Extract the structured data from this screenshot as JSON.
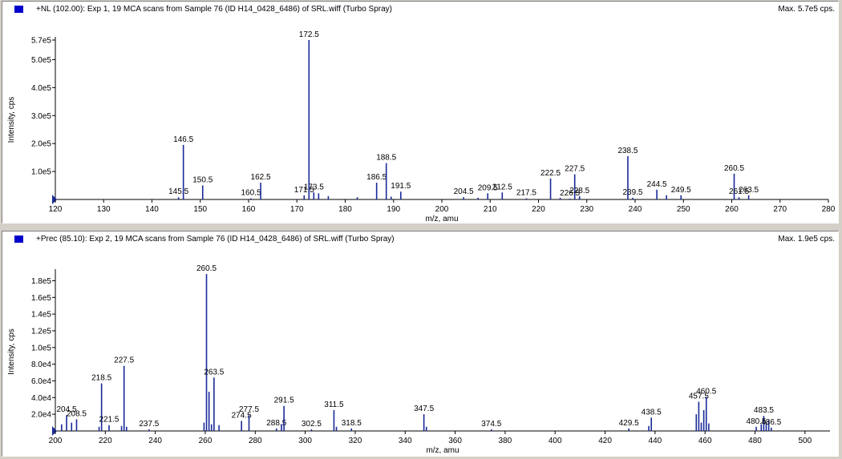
{
  "chart_data": [
    {
      "type": "bar",
      "title": "+NL (102.00): Exp 1, 19 MCA scans from Sample 76 (ID H14_0428_6486) of SRL.wiff (Turbo Spray)",
      "max_label": "Max. 5.7e5 cps.",
      "xlabel": "m/z, amu",
      "ylabel": "Intensity, cps",
      "xlim": [
        120,
        280
      ],
      "ylim": [
        0,
        570000
      ],
      "x_ticks": [
        120,
        130,
        140,
        150,
        160,
        170,
        180,
        190,
        200,
        210,
        220,
        230,
        240,
        250,
        260,
        270,
        280
      ],
      "y_ticks": [
        {
          "value": 100000,
          "label": "1.0e5"
        },
        {
          "value": 200000,
          "label": "2.0e5"
        },
        {
          "value": 300000,
          "label": "3.0e5"
        },
        {
          "value": 400000,
          "label": "4.0e5"
        },
        {
          "value": 500000,
          "label": "5.0e5"
        },
        {
          "value": 570000,
          "label": "5.7e5"
        }
      ],
      "peaks": [
        {
          "x": 145.5,
          "y": 8000,
          "label": "145.5"
        },
        {
          "x": 146.5,
          "y": 195000,
          "label": "146.5"
        },
        {
          "x": 150.5,
          "y": 50000,
          "label": "150.5"
        },
        {
          "x": 160.5,
          "y": 4000,
          "label": "160.5"
        },
        {
          "x": 162.5,
          "y": 60000,
          "label": "162.5"
        },
        {
          "x": 171.5,
          "y": 15000,
          "label": "171.5"
        },
        {
          "x": 172.5,
          "y": 570000,
          "label": "172.5"
        },
        {
          "x": 173.5,
          "y": 25000,
          "label": "173.5"
        },
        {
          "x": 174.5,
          "y": 22000,
          "label": ""
        },
        {
          "x": 176.5,
          "y": 12000,
          "label": ""
        },
        {
          "x": 182.5,
          "y": 8000,
          "label": ""
        },
        {
          "x": 186.5,
          "y": 60000,
          "label": "186.5"
        },
        {
          "x": 188.5,
          "y": 130000,
          "label": "188.5"
        },
        {
          "x": 189.5,
          "y": 10000,
          "label": ""
        },
        {
          "x": 191.5,
          "y": 28000,
          "label": "191.5"
        },
        {
          "x": 204.5,
          "y": 8000,
          "label": "204.5"
        },
        {
          "x": 207.5,
          "y": 6000,
          "label": ""
        },
        {
          "x": 209.5,
          "y": 22000,
          "label": "209.5"
        },
        {
          "x": 212.5,
          "y": 25000,
          "label": "212.5"
        },
        {
          "x": 217.5,
          "y": 4000,
          "label": "217.5"
        },
        {
          "x": 222.5,
          "y": 75000,
          "label": "222.5"
        },
        {
          "x": 224.5,
          "y": 6000,
          "label": ""
        },
        {
          "x": 226.5,
          "y": 3000,
          "label": "226.5"
        },
        {
          "x": 227.5,
          "y": 90000,
          "label": "227.5"
        },
        {
          "x": 228.5,
          "y": 12000,
          "label": "228.5"
        },
        {
          "x": 238.5,
          "y": 155000,
          "label": "238.5"
        },
        {
          "x": 239.5,
          "y": 6000,
          "label": "239.5"
        },
        {
          "x": 244.5,
          "y": 35000,
          "label": "244.5"
        },
        {
          "x": 246.5,
          "y": 15000,
          "label": ""
        },
        {
          "x": 249.5,
          "y": 15000,
          "label": "249.5"
        },
        {
          "x": 260.5,
          "y": 92000,
          "label": "260.5"
        },
        {
          "x": 261.5,
          "y": 8000,
          "label": "261.5"
        },
        {
          "x": 263.5,
          "y": 15000,
          "label": "263.5"
        }
      ]
    },
    {
      "type": "bar",
      "title": "+Prec (85.10): Exp 2, 19 MCA scans from Sample 76 (ID H14_0428_6486) of SRL.wiff (Turbo Spray)",
      "max_label": "Max. 1.9e5 cps.",
      "xlabel": "m/z, amu",
      "ylabel": "Intensity, cps",
      "xlim": [
        200,
        510
      ],
      "ylim": [
        0,
        190000
      ],
      "x_ticks": [
        200,
        220,
        240,
        260,
        280,
        300,
        320,
        340,
        360,
        380,
        400,
        420,
        440,
        460,
        480,
        500
      ],
      "y_ticks": [
        {
          "value": 20000,
          "label": "2.0e4"
        },
        {
          "value": 40000,
          "label": "4.0e4"
        },
        {
          "value": 60000,
          "label": "6.0e4"
        },
        {
          "value": 80000,
          "label": "8.0e4"
        },
        {
          "value": 100000,
          "label": "1.0e5"
        },
        {
          "value": 120000,
          "label": "1.2e5"
        },
        {
          "value": 140000,
          "label": "1.4e5"
        },
        {
          "value": 160000,
          "label": "1.6e5"
        },
        {
          "value": 180000,
          "label": "1.8e5"
        }
      ],
      "peaks": [
        {
          "x": 202.5,
          "y": 8000,
          "label": ""
        },
        {
          "x": 204.5,
          "y": 19000,
          "label": "204.5"
        },
        {
          "x": 206.5,
          "y": 10000,
          "label": ""
        },
        {
          "x": 208.5,
          "y": 14000,
          "label": "208.5"
        },
        {
          "x": 217.5,
          "y": 5000,
          "label": ""
        },
        {
          "x": 218.5,
          "y": 57000,
          "label": "218.5"
        },
        {
          "x": 221.5,
          "y": 7000,
          "label": "221.5"
        },
        {
          "x": 226.5,
          "y": 6000,
          "label": ""
        },
        {
          "x": 227.5,
          "y": 78000,
          "label": "227.5"
        },
        {
          "x": 228.5,
          "y": 5000,
          "label": ""
        },
        {
          "x": 237.5,
          "y": 2000,
          "label": "237.5"
        },
        {
          "x": 259.5,
          "y": 10000,
          "label": ""
        },
        {
          "x": 260.5,
          "y": 188000,
          "label": "260.5"
        },
        {
          "x": 261.5,
          "y": 47000,
          "label": ""
        },
        {
          "x": 262.5,
          "y": 8000,
          "label": ""
        },
        {
          "x": 263.5,
          "y": 64000,
          "label": "263.5"
        },
        {
          "x": 265.5,
          "y": 7000,
          "label": ""
        },
        {
          "x": 274.5,
          "y": 12000,
          "label": "274.5"
        },
        {
          "x": 277.5,
          "y": 19000,
          "label": "277.5"
        },
        {
          "x": 288.5,
          "y": 3000,
          "label": "288.5"
        },
        {
          "x": 290.5,
          "y": 8000,
          "label": ""
        },
        {
          "x": 291.5,
          "y": 30000,
          "label": "291.5"
        },
        {
          "x": 302.5,
          "y": 2000,
          "label": "302.5"
        },
        {
          "x": 311.5,
          "y": 25000,
          "label": "311.5"
        },
        {
          "x": 312.5,
          "y": 5000,
          "label": ""
        },
        {
          "x": 318.5,
          "y": 3000,
          "label": "318.5"
        },
        {
          "x": 347.5,
          "y": 20000,
          "label": "347.5"
        },
        {
          "x": 348.5,
          "y": 5000,
          "label": ""
        },
        {
          "x": 374.5,
          "y": 2000,
          "label": "374.5"
        },
        {
          "x": 429.5,
          "y": 3000,
          "label": "429.5"
        },
        {
          "x": 437.5,
          "y": 6000,
          "label": ""
        },
        {
          "x": 438.5,
          "y": 16000,
          "label": "438.5"
        },
        {
          "x": 456.5,
          "y": 20000,
          "label": ""
        },
        {
          "x": 457.5,
          "y": 35000,
          "label": "457.5"
        },
        {
          "x": 458.5,
          "y": 10000,
          "label": ""
        },
        {
          "x": 459.5,
          "y": 25000,
          "label": ""
        },
        {
          "x": 460.5,
          "y": 41000,
          "label": "460.5"
        },
        {
          "x": 461.5,
          "y": 9000,
          "label": ""
        },
        {
          "x": 480.5,
          "y": 5000,
          "label": "480.5"
        },
        {
          "x": 482.5,
          "y": 8000,
          "label": ""
        },
        {
          "x": 483.5,
          "y": 18000,
          "label": "483.5"
        },
        {
          "x": 484.5,
          "y": 10000,
          "label": ""
        },
        {
          "x": 485.5,
          "y": 13000,
          "label": ""
        },
        {
          "x": 486.5,
          "y": 4000,
          "label": "486.5"
        }
      ]
    }
  ]
}
